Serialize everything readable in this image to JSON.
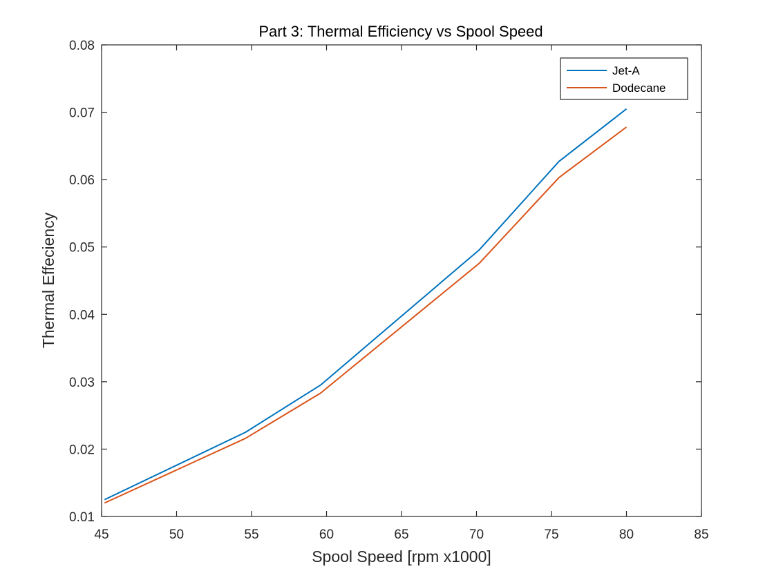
{
  "chart_data": {
    "type": "line",
    "title": "Part 3: Thermal Efficiency vs Spool Speed",
    "xlabel": "Spool Speed [rpm x1000]",
    "ylabel": "Thermal Effeciency",
    "xlim": [
      45,
      85
    ],
    "ylim": [
      0.01,
      0.08
    ],
    "xticks": [
      45,
      50,
      55,
      60,
      65,
      70,
      75,
      80,
      85
    ],
    "yticks": [
      0.01,
      0.02,
      0.03,
      0.04,
      0.05,
      0.06,
      0.07,
      0.08
    ],
    "xtick_labels": [
      "45",
      "50",
      "55",
      "60",
      "65",
      "70",
      "75",
      "80",
      "85"
    ],
    "ytick_labels": [
      "0.01",
      "0.02",
      "0.03",
      "0.04",
      "0.05",
      "0.06",
      "0.07",
      "0.08"
    ],
    "grid": false,
    "legend_position": "top-right",
    "series": [
      {
        "name": "Jet-A",
        "color": "#0072BD",
        "x": [
          45.2,
          54.6,
          59.6,
          70.2,
          75.5,
          80.0
        ],
        "y": [
          0.0125,
          0.0225,
          0.0295,
          0.0496,
          0.0627,
          0.0705
        ]
      },
      {
        "name": "Dodecane",
        "color": "#D95319",
        "x": [
          45.2,
          54.6,
          59.6,
          70.2,
          75.5,
          80.0
        ],
        "y": [
          0.012,
          0.0216,
          0.0283,
          0.0476,
          0.0603,
          0.0678
        ]
      }
    ]
  }
}
